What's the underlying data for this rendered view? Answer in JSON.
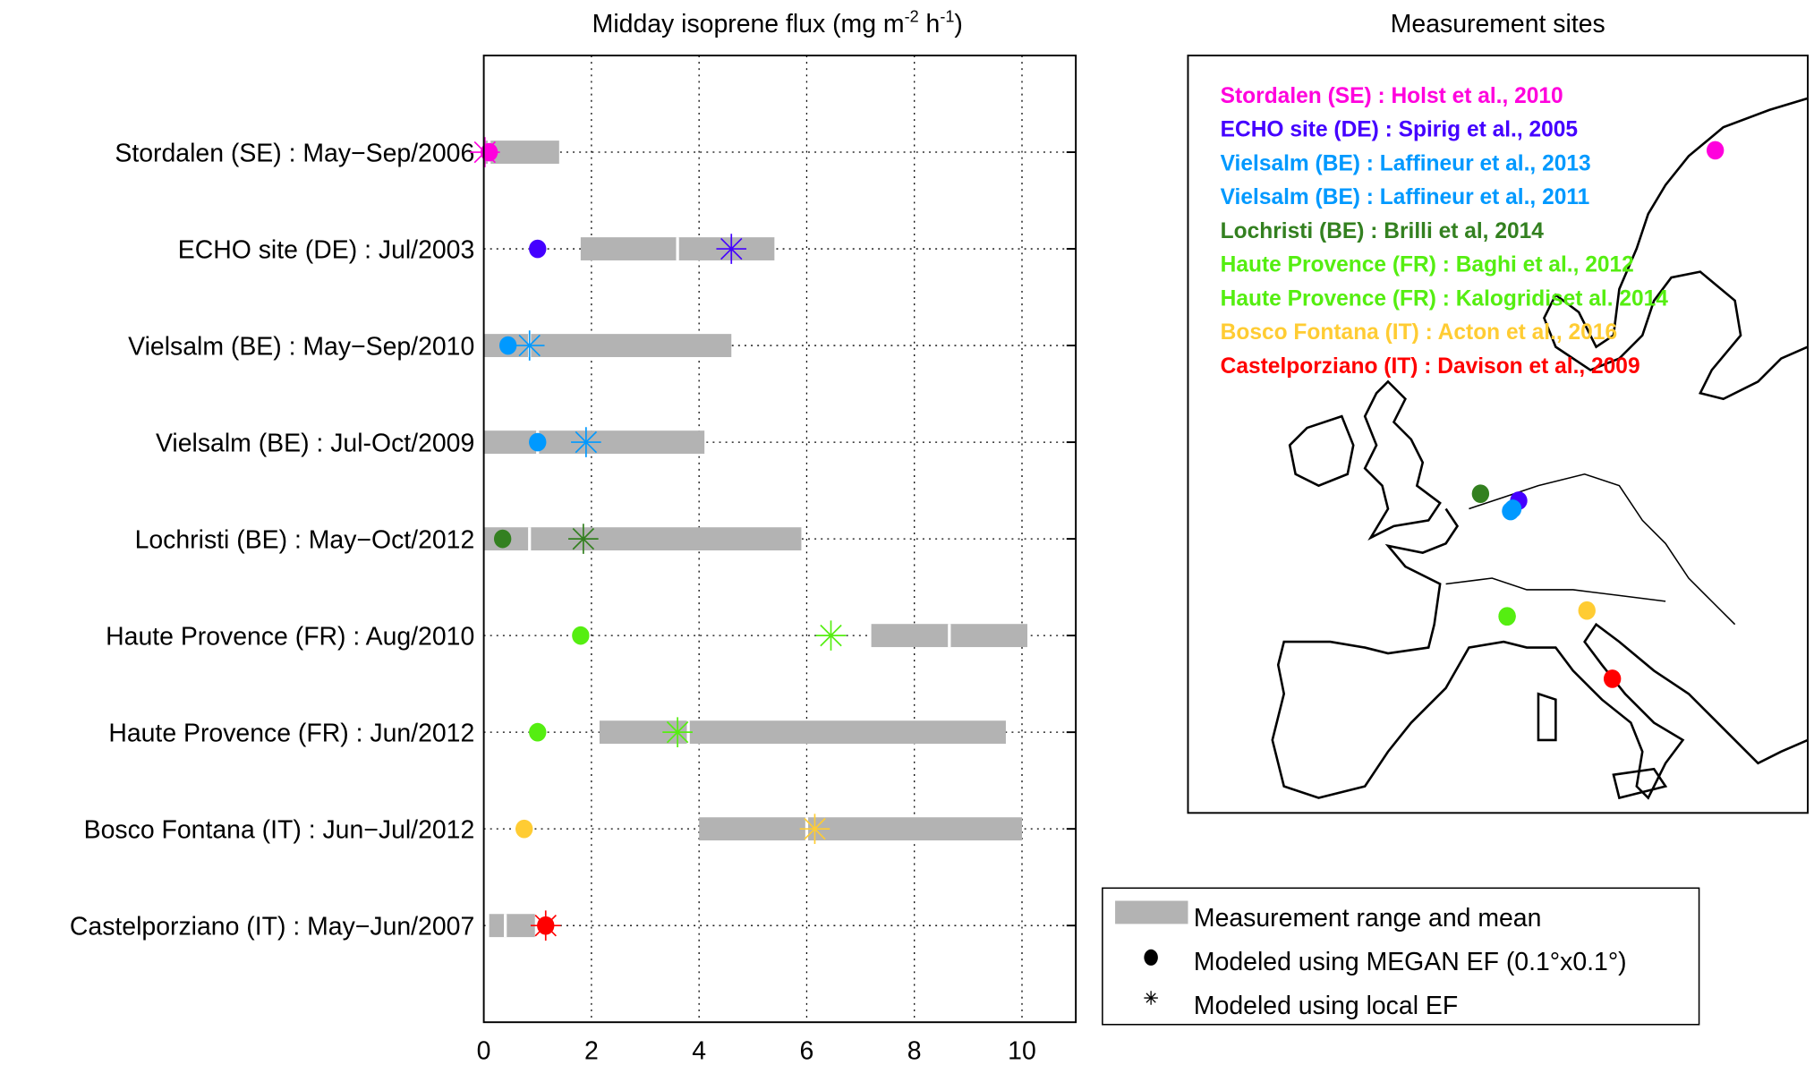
{
  "chart_data": {
    "type": "bar",
    "title": "Midday isoprene flux (mg m",
    "title_sup1": "-2",
    "title_mid": " h",
    "title_sup2": "-1",
    "title_end": ")",
    "xlim": [
      0,
      11
    ],
    "xticks": [
      "0",
      "2",
      "4",
      "6",
      "8",
      "10"
    ],
    "grid": true,
    "bar_color": "#b3b3b3",
    "categories": [
      "Stordalen (SE) : May−Sep/2006",
      "ECHO site (DE) : Jul/2003",
      "Vielsalm (BE) : May−Sep/2010",
      "Vielsalm (BE) : Jul-Oct/2009",
      "Lochristi (BE) : May−Oct/2012",
      "Haute Provence (FR) : Aug/2010",
      "Haute Provence (FR) : Jun/2012",
      "Bosco Fontana (IT) : Jun−Jul/2012",
      "Castelporziano (IT) : May−Jun/2007"
    ],
    "measurement_range": [
      [
        0,
        1.4
      ],
      [
        1.8,
        5.4
      ],
      [
        0,
        4.6
      ],
      [
        0,
        4.1
      ],
      [
        0,
        5.9
      ],
      [
        7.2,
        10.1
      ],
      [
        2.15,
        9.7
      ],
      [
        4.0,
        10.0
      ],
      [
        0.1,
        0.95
      ]
    ],
    "measurement_mean": [
      0.1,
      3.6,
      0.85,
      1.0,
      0.85,
      8.65,
      3.8,
      6.0,
      0.4
    ],
    "megan_ef": [
      0.1,
      1.0,
      0.45,
      1.0,
      0.35,
      1.8,
      1.0,
      0.75,
      1.15
    ],
    "local_ef": [
      0.02,
      4.6,
      0.85,
      1.9,
      1.85,
      6.45,
      3.6,
      6.15,
      1.15
    ],
    "colors": [
      "#ff00dd",
      "#4400ff",
      "#0099ff",
      "#0099ff",
      "#338020",
      "#55ee11",
      "#55ee11",
      "#ffcc33",
      "#ff0000"
    ],
    "legend": {
      "placement": "bottom-right",
      "items": [
        "Measurement range and mean",
        "Modeled using MEGAN EF (0.1°x0.1°)",
        "Modeled using local EF"
      ]
    }
  },
  "map": {
    "title": "Measurement sites",
    "legend": [
      {
        "text": "Stordalen (SE) : Holst et al., 2010",
        "color": "#ff00dd"
      },
      {
        "text": "ECHO site (DE) : Spirig et al., 2005",
        "color": "#4400ff"
      },
      {
        "text": "Vielsalm (BE) : Laffineur et al., 2013",
        "color": "#0099ff"
      },
      {
        "text": "Vielsalm (BE) : Laffineur et al., 2011",
        "color": "#0099ff"
      },
      {
        "text": "Lochristi (BE) : Brilli et al, 2014",
        "color": "#338020"
      },
      {
        "text": "Haute Provence (FR) : Baghi et al., 2012",
        "color": "#55ee11"
      },
      {
        "text": "Haute Provence (FR) : Kalogridiset al. 2014",
        "color": "#55ee11"
      },
      {
        "text": "Bosco Fontana (IT) : Acton et al., 2016",
        "color": "#ffcc33"
      },
      {
        "text": "Castelporziano (IT) : Davison et al., 2009",
        "color": "#ff0000"
      }
    ]
  }
}
